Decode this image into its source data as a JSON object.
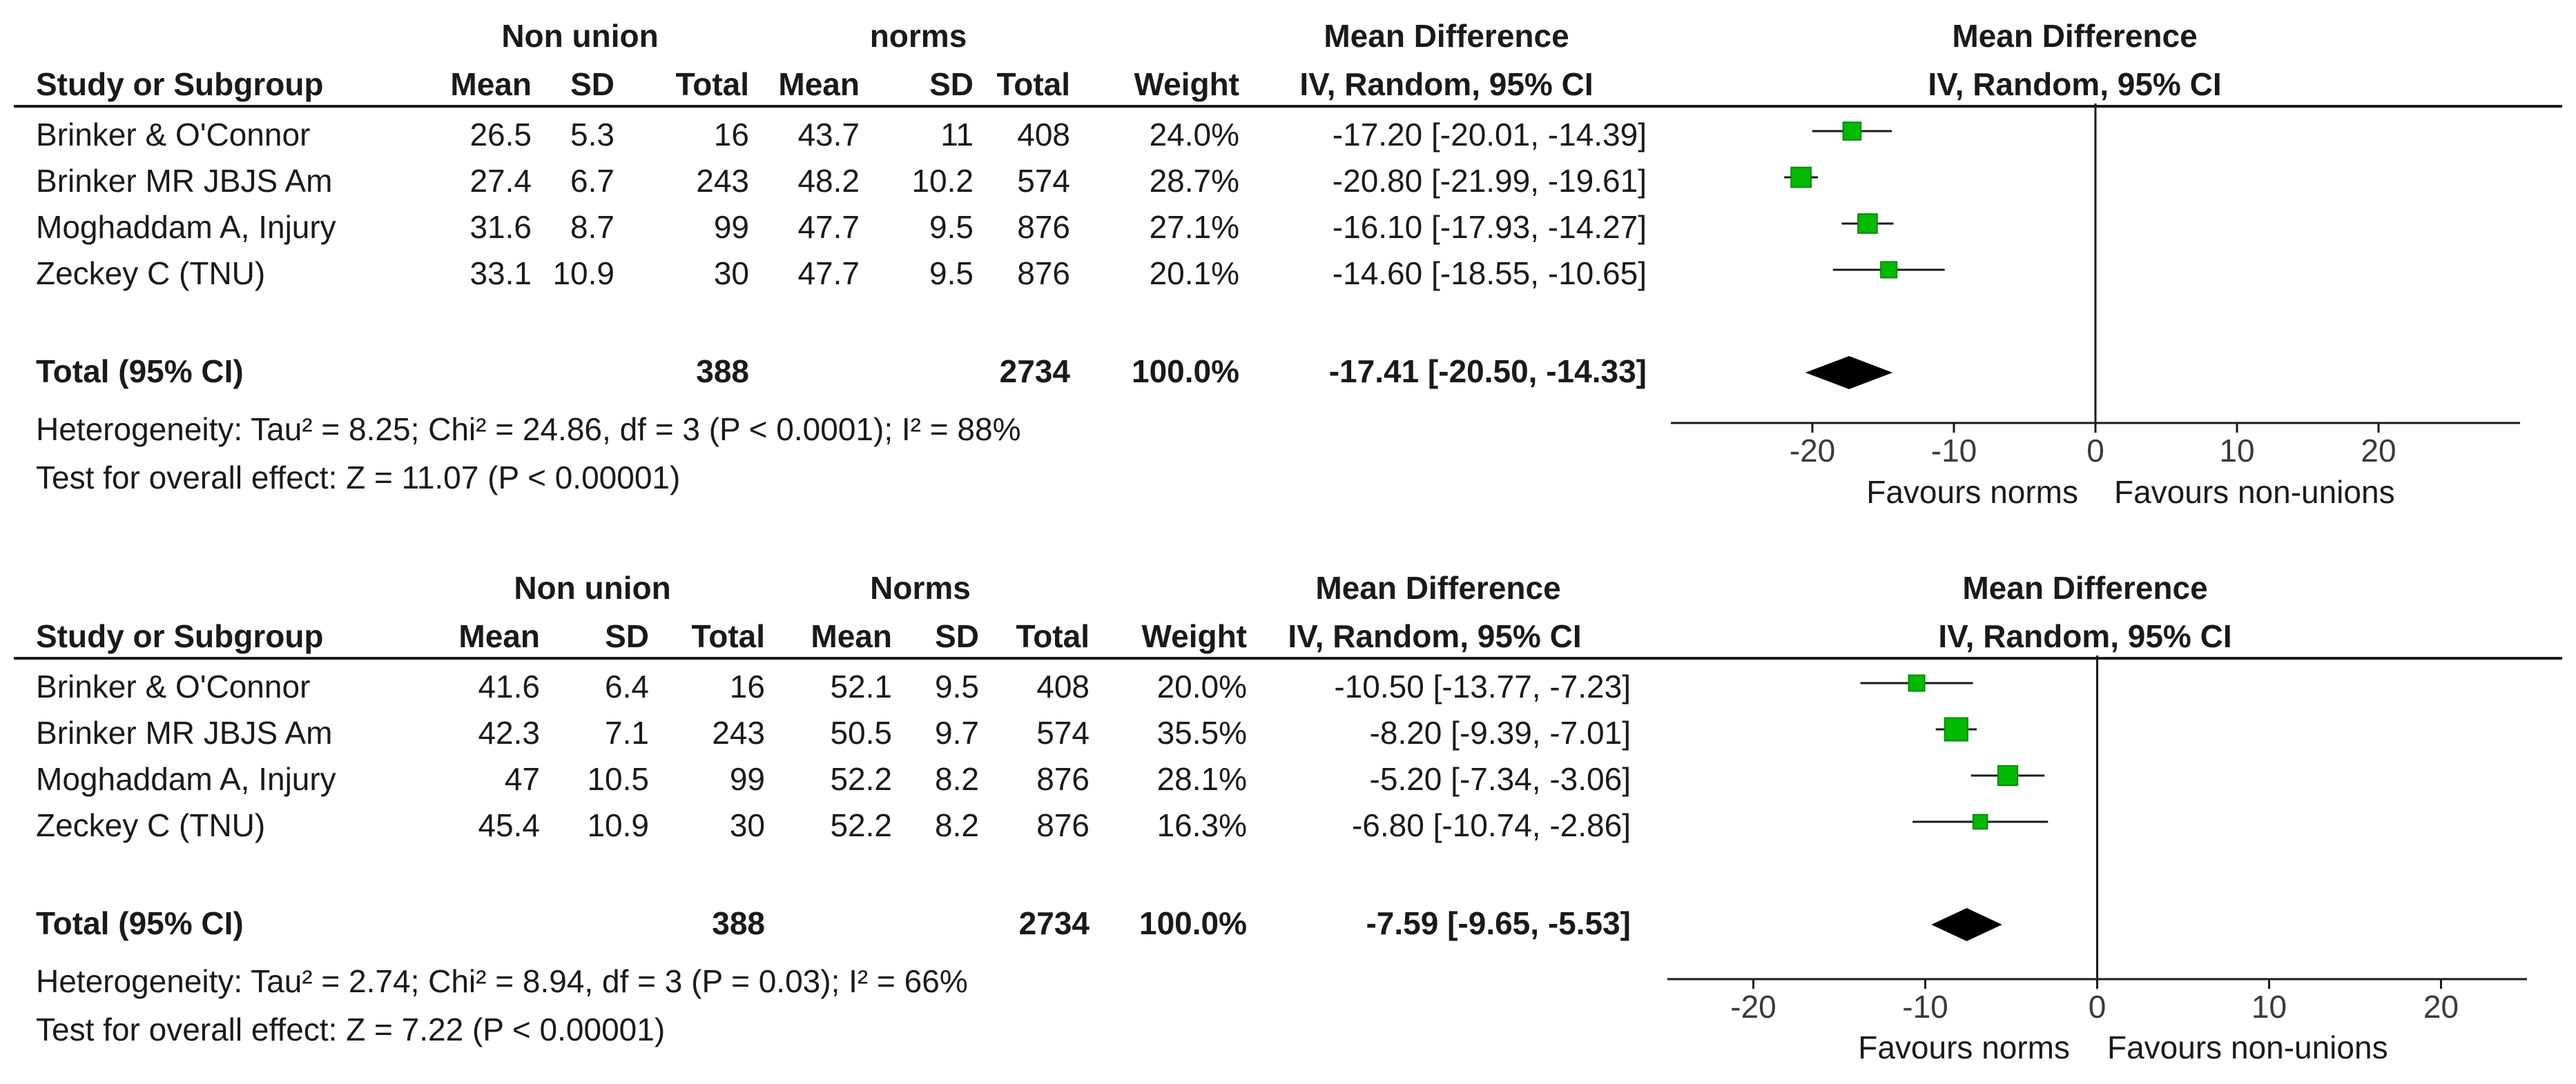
{
  "headers": {
    "study": "Study or Subgroup",
    "mean": "Mean",
    "sd": "SD",
    "total": "Total",
    "weight": "Weight",
    "md_title": "Mean Difference",
    "md_sub": "IV, Random, 95% CI"
  },
  "panels": [
    {
      "group1": "Non union",
      "group2": "norms",
      "rows": [
        {
          "study": "Brinker & O'Connor",
          "m1": "26.5",
          "sd1": "5.3",
          "n1": "16",
          "m2": "43.7",
          "sd2": "11",
          "n2": "408",
          "weight": "24.0%",
          "ci": "-17.20 [-20.01, -14.39]"
        },
        {
          "study": "Brinker MR JBJS Am",
          "m1": "27.4",
          "sd1": "6.7",
          "n1": "243",
          "m2": "48.2",
          "sd2": "10.2",
          "n2": "574",
          "weight": "28.7%",
          "ci": "-20.80 [-21.99, -19.61]"
        },
        {
          "study": "Moghaddam A, Injury",
          "m1": "31.6",
          "sd1": "8.7",
          "n1": "99",
          "m2": "47.7",
          "sd2": "9.5",
          "n2": "876",
          "weight": "27.1%",
          "ci": "-16.10 [-17.93, -14.27]"
        },
        {
          "study": "Zeckey C (TNU)",
          "m1": "33.1",
          "sd1": "10.9",
          "n1": "30",
          "m2": "47.7",
          "sd2": "9.5",
          "n2": "876",
          "weight": "20.1%",
          "ci": "-14.60 [-18.55, -10.65]"
        }
      ],
      "total": {
        "label": "Total (95% CI)",
        "n1": "388",
        "n2": "2734",
        "weight": "100.0%",
        "ci": "-17.41 [-20.50, -14.33]"
      },
      "heterogeneity": "Heterogeneity: Tau² = 8.25; Chi² = 24.86, df = 3 (P < 0.0001); I² = 88%",
      "overall": "Test for overall effect: Z = 11.07 (P < 0.00001)",
      "favours_left": "Favours norms",
      "favours_right": "Favours non-unions"
    },
    {
      "group1": "Non union",
      "group2": "Norms",
      "rows": [
        {
          "study": "Brinker & O'Connor",
          "m1": "41.6",
          "sd1": "6.4",
          "n1": "16",
          "m2": "52.1",
          "sd2": "9.5",
          "n2": "408",
          "weight": "20.0%",
          "ci": "-10.50 [-13.77, -7.23]"
        },
        {
          "study": "Brinker MR JBJS Am",
          "m1": "42.3",
          "sd1": "7.1",
          "n1": "243",
          "m2": "50.5",
          "sd2": "9.7",
          "n2": "574",
          "weight": "35.5%",
          "ci": "-8.20 [-9.39, -7.01]"
        },
        {
          "study": "Moghaddam A, Injury",
          "m1": "47",
          "sd1": "10.5",
          "n1": "99",
          "m2": "52.2",
          "sd2": "8.2",
          "n2": "876",
          "weight": "28.1%",
          "ci": "-5.20 [-7.34, -3.06]"
        },
        {
          "study": "Zeckey C (TNU)",
          "m1": "45.4",
          "sd1": "10.9",
          "n1": "30",
          "m2": "52.2",
          "sd2": "8.2",
          "n2": "876",
          "weight": "16.3%",
          "ci": "-6.80 [-10.74, -2.86]"
        }
      ],
      "total": {
        "label": "Total (95% CI)",
        "n1": "388",
        "n2": "2734",
        "weight": "100.0%",
        "ci": "-7.59 [-9.65, -5.53]"
      },
      "heterogeneity": "Heterogeneity: Tau² = 2.74; Chi² = 8.94, df = 3 (P = 0.03); I² = 66%",
      "overall": "Test for overall effect: Z = 7.22 (P < 0.00001)",
      "favours_left": "Favours norms",
      "favours_right": "Favours non-unions"
    }
  ],
  "chart_data": [
    {
      "type": "forest",
      "title": "Mean Difference",
      "subtitle": "IV, Random, 95% CI",
      "xlim": [
        -30,
        30
      ],
      "ticks": [
        "-20",
        "-10",
        "0",
        "10",
        "20"
      ],
      "tick_values": [
        -20,
        -10,
        0,
        10,
        20
      ],
      "studies": [
        {
          "name": "Brinker & O'Connor",
          "md": -17.2,
          "lo": -20.01,
          "hi": -14.39,
          "weight": 24.0
        },
        {
          "name": "Brinker MR JBJS Am",
          "md": -20.8,
          "lo": -21.99,
          "hi": -19.61,
          "weight": 28.7
        },
        {
          "name": "Moghaddam A, Injury",
          "md": -16.1,
          "lo": -17.93,
          "hi": -14.27,
          "weight": 27.1
        },
        {
          "name": "Zeckey C (TNU)",
          "md": -14.6,
          "lo": -18.55,
          "hi": -10.65,
          "weight": 20.1
        }
      ],
      "pooled": {
        "md": -17.41,
        "lo": -20.5,
        "hi": -14.33
      },
      "colors": {
        "square": "#00bb00",
        "square_edge": "#008800",
        "line": "#1a1a1a",
        "diamond": "#000000"
      }
    },
    {
      "type": "forest",
      "title": "Mean Difference",
      "subtitle": "IV, Random, 95% CI",
      "xlim": [
        -25,
        25
      ],
      "ticks": [
        "-20",
        "-10",
        "0",
        "10",
        "20"
      ],
      "tick_values": [
        -20,
        -10,
        0,
        10,
        20
      ],
      "studies": [
        {
          "name": "Brinker & O'Connor",
          "md": -10.5,
          "lo": -13.77,
          "hi": -7.23,
          "weight": 20.0
        },
        {
          "name": "Brinker MR JBJS Am",
          "md": -8.2,
          "lo": -9.39,
          "hi": -7.01,
          "weight": 35.5
        },
        {
          "name": "Moghaddam A, Injury",
          "md": -5.2,
          "lo": -7.34,
          "hi": -3.06,
          "weight": 28.1
        },
        {
          "name": "Zeckey C (TNU)",
          "md": -6.8,
          "lo": -10.74,
          "hi": -2.86,
          "weight": 16.3
        }
      ],
      "pooled": {
        "md": -7.59,
        "lo": -9.65,
        "hi": -5.53
      },
      "colors": {
        "square": "#00bb00",
        "square_edge": "#008800",
        "line": "#1a1a1a",
        "diamond": "#000000"
      }
    }
  ]
}
